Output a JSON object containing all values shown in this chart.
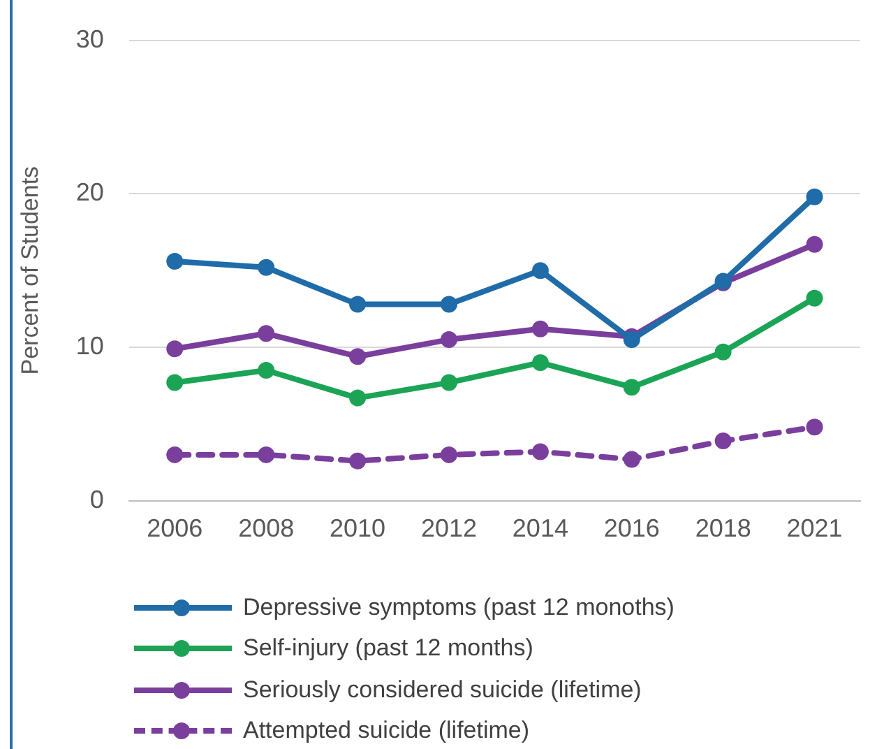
{
  "chart_data": {
    "type": "line",
    "ylabel": "Percent of Students",
    "categories": [
      "2006",
      "2008",
      "2010",
      "2012",
      "2014",
      "2016",
      "2018",
      "2021"
    ],
    "series": [
      {
        "name": "Depressive symptoms (past 12 monoths)",
        "color": "#1f6ca8",
        "values": [
          15.6,
          15.2,
          12.8,
          12.8,
          15.0,
          10.5,
          14.3,
          19.8
        ]
      },
      {
        "name": "Self-injury (past 12 months)",
        "color": "#1ca456",
        "values": [
          7.7,
          8.5,
          6.7,
          7.7,
          9.0,
          7.4,
          9.7,
          13.2
        ]
      },
      {
        "name": "Seriously considered suicide (lifetime)",
        "color": "#7a3f9d",
        "values": [
          9.9,
          10.9,
          9.4,
          10.5,
          11.2,
          10.7,
          14.2,
          16.7
        ]
      },
      {
        "name": "Attempted suicide (lifetime)",
        "color": "#7a3f9d",
        "line_style": "dashed",
        "values": [
          3.0,
          3.0,
          2.6,
          3.0,
          3.2,
          2.7,
          3.9,
          4.8
        ]
      }
    ],
    "ylim": [
      0,
      30
    ],
    "yticks": [
      0,
      10,
      20,
      30
    ],
    "grid": "y",
    "legend": "bottom",
    "marker": "circle"
  }
}
